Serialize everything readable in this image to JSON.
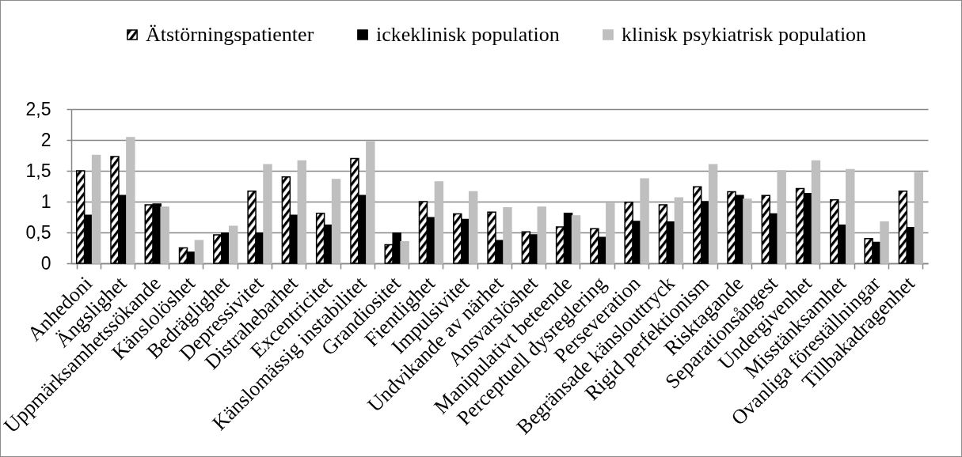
{
  "chart_data": {
    "type": "bar",
    "categories": [
      "Anhedoni",
      "Ängslighet",
      "Uppmärksamhetssökande",
      "Känslolöshet",
      "Bedräglighet",
      "Depressivitet",
      "Distrahebarhet",
      "Excentricitet",
      "Känslomässig instabilitet",
      "Grandiositet",
      "Fientlighet",
      "Impulsivitet",
      "Undvikande av närhet",
      "Ansvarslöshet",
      "Manipulativt beteende",
      "Perceptuell dysreglering",
      "Perseveration",
      "Begränsade känslouttryck",
      "Rigid perfektionism",
      "Risktagande",
      "Separationsångest",
      "Undergivenhet",
      "Misstänksamhet",
      "Ovanliga föreställningar",
      "Tillbakadragenhet"
    ],
    "series": [
      {
        "name": "Ätstörningspatienter",
        "color": "#000000",
        "values": [
          1.5,
          1.73,
          0.95,
          0.25,
          0.46,
          1.17,
          1.4,
          0.81,
          1.7,
          0.3,
          1.0,
          0.8,
          0.83,
          0.51,
          0.59,
          0.56,
          0.99,
          0.95,
          1.24,
          1.16,
          1.1,
          1.21,
          1.03,
          0.4,
          1.17
        ]
      },
      {
        "name": "ickeklinisk population",
        "color": "#000000",
        "values": [
          0.78,
          1.1,
          0.96,
          0.18,
          0.49,
          0.49,
          0.78,
          0.62,
          1.1,
          0.49,
          0.74,
          0.71,
          0.37,
          0.46,
          0.81,
          0.42,
          0.68,
          0.67,
          1.0,
          1.1,
          0.8,
          1.13,
          0.62,
          0.34,
          0.58
        ]
      },
      {
        "name": "klinisk psykiatrisk population",
        "color": "#bfbfbf",
        "values": [
          1.75,
          2.04,
          0.91,
          0.37,
          0.6,
          1.6,
          1.66,
          1.36,
          1.97,
          0.35,
          1.32,
          1.16,
          0.9,
          0.91,
          0.77,
          0.97,
          1.37,
          1.06,
          1.6,
          1.04,
          1.5,
          1.66,
          1.52,
          0.67,
          1.47
        ]
      }
    ],
    "ylim": [
      0,
      2.5
    ],
    "yticks": [
      0,
      {
        "value": 0.5,
        "label": "0,5"
      },
      1,
      {
        "value": 1.5,
        "label": "1,5"
      },
      2,
      {
        "value": 2.5,
        "label": "2,5"
      }
    ],
    "grid": "y",
    "legend": "top"
  }
}
